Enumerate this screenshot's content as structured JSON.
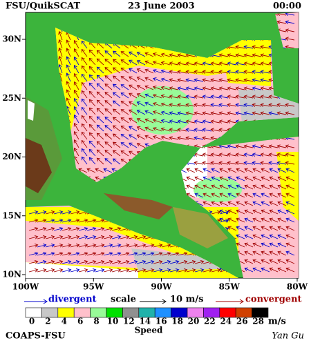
{
  "header": {
    "source": "FSU/QuikSCAT",
    "date": "23 June 2003",
    "time": "00:00"
  },
  "axes": {
    "lat_labels": [
      "30N",
      "25N",
      "20N",
      "15N",
      "10N"
    ],
    "lon_labels": [
      "100W",
      "95W",
      "90W",
      "85W",
      "80W"
    ]
  },
  "legend": {
    "divergent": "divergent",
    "scale": "scale",
    "scale_value": "10 m/s",
    "convergent": "convergent",
    "divergent_color": "#0000cc",
    "convergent_color": "#a00000"
  },
  "colorbar": {
    "labels": [
      "0",
      "2",
      "4",
      "6",
      "8",
      "10",
      "12",
      "14",
      "16",
      "18",
      "20",
      "22",
      "24",
      "26",
      "28"
    ],
    "colors": [
      "#ffffff",
      "#c8c8c8",
      "#ffff00",
      "#ffc0cb",
      "#98fb98",
      "#00e000",
      "#909090",
      "#20b2aa",
      "#1e90ff",
      "#0000cd",
      "#ee82ee",
      "#a020f0",
      "#ff0000",
      "#d04000",
      "#000000"
    ],
    "unit": "m/s",
    "title": "Speed"
  },
  "footer": {
    "institution": "COAPS-FSU",
    "author": "Yan Gu"
  }
}
